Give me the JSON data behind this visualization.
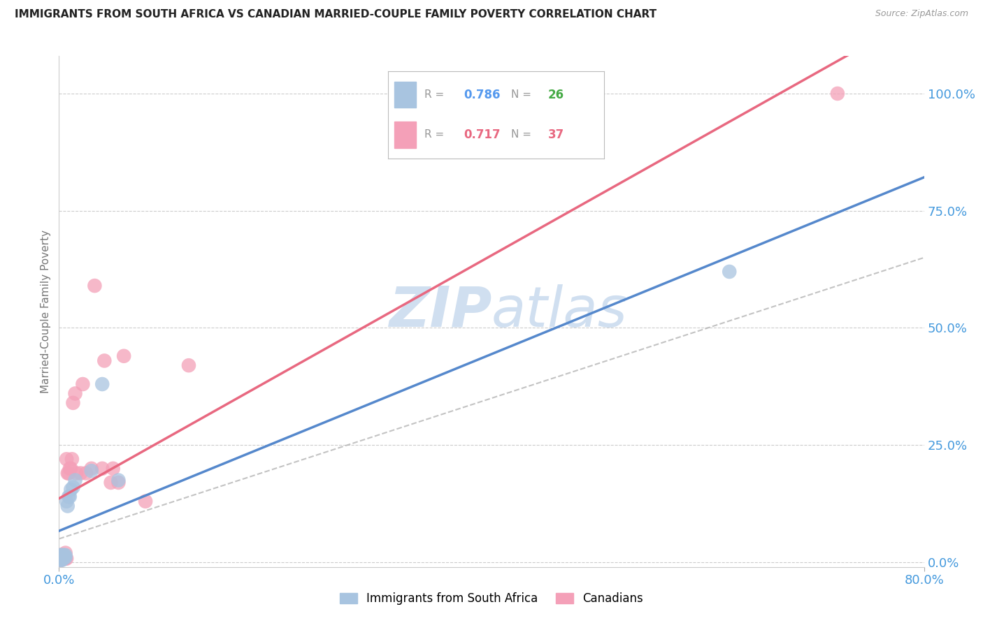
{
  "title": "IMMIGRANTS FROM SOUTH AFRICA VS CANADIAN MARRIED-COUPLE FAMILY POVERTY CORRELATION CHART",
  "source": "Source: ZipAtlas.com",
  "ylabel": "Married-Couple Family Poverty",
  "xlim": [
    0.0,
    0.8
  ],
  "ylim": [
    -0.01,
    1.08
  ],
  "yticks_right": [
    0.0,
    0.25,
    0.5,
    0.75,
    1.0
  ],
  "yticklabels_right": [
    "0.0%",
    "25.0%",
    "50.0%",
    "75.0%",
    "100.0%"
  ],
  "legend_blue_r": "0.786",
  "legend_blue_n": "26",
  "legend_pink_r": "0.717",
  "legend_pink_n": "37",
  "blue_scatter_color": "#a8c4e0",
  "pink_scatter_color": "#f4a0b8",
  "blue_line_color": "#5588cc",
  "pink_line_color": "#e86880",
  "gray_dash_color": "#aaaaaa",
  "watermark_color": "#d0dff0",
  "legend_label_blue": "Immigrants from South Africa",
  "legend_label_pink": "Canadians",
  "blue_scatter_x": [
    0.001,
    0.001,
    0.001,
    0.002,
    0.002,
    0.002,
    0.003,
    0.003,
    0.003,
    0.004,
    0.004,
    0.005,
    0.005,
    0.006,
    0.006,
    0.007,
    0.008,
    0.009,
    0.01,
    0.011,
    0.013,
    0.015,
    0.03,
    0.04,
    0.055,
    0.62
  ],
  "blue_scatter_y": [
    0.005,
    0.01,
    0.015,
    0.005,
    0.01,
    0.015,
    0.005,
    0.01,
    0.015,
    0.01,
    0.015,
    0.01,
    0.015,
    0.01,
    0.015,
    0.13,
    0.12,
    0.14,
    0.14,
    0.155,
    0.16,
    0.175,
    0.195,
    0.38,
    0.175,
    0.62
  ],
  "pink_scatter_x": [
    0.001,
    0.001,
    0.001,
    0.002,
    0.002,
    0.003,
    0.003,
    0.004,
    0.004,
    0.005,
    0.005,
    0.006,
    0.006,
    0.007,
    0.007,
    0.008,
    0.009,
    0.01,
    0.011,
    0.012,
    0.013,
    0.015,
    0.016,
    0.02,
    0.022,
    0.025,
    0.03,
    0.033,
    0.04,
    0.042,
    0.048,
    0.05,
    0.055,
    0.06,
    0.08,
    0.12,
    0.72
  ],
  "pink_scatter_y": [
    0.005,
    0.01,
    0.015,
    0.005,
    0.015,
    0.008,
    0.015,
    0.008,
    0.015,
    0.008,
    0.015,
    0.008,
    0.02,
    0.008,
    0.22,
    0.19,
    0.19,
    0.2,
    0.2,
    0.22,
    0.34,
    0.36,
    0.19,
    0.19,
    0.38,
    0.19,
    0.2,
    0.59,
    0.2,
    0.43,
    0.17,
    0.2,
    0.17,
    0.44,
    0.13,
    0.42,
    1.0
  ],
  "background_color": "#ffffff",
  "grid_color": "#cccccc"
}
